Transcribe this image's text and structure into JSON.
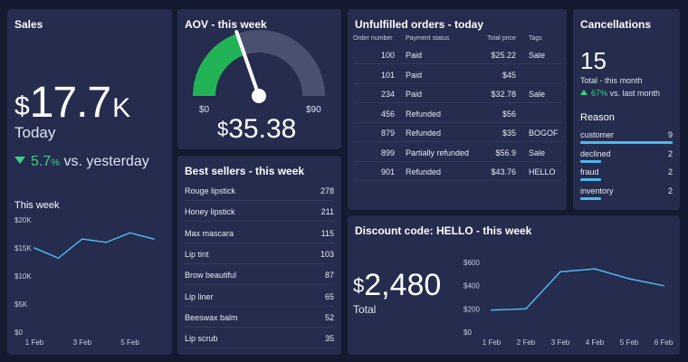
{
  "colors": {
    "background": "#141a30",
    "panel": "#252c4d",
    "accent_line": "#4fb6ee",
    "gauge_fill": "#22b356",
    "gauge_track": "#4a5170",
    "positive": "#3ccf86"
  },
  "sales": {
    "title": "Sales",
    "currency": "$",
    "value": "17.7",
    "suffix": "K",
    "period": "Today",
    "change": "5.7",
    "change_unit": "%",
    "change_text": "vs. yesterday",
    "change_direction": "down-arrow-icon",
    "week_title": "This week",
    "chart_data": {
      "type": "line",
      "categories": [
        "1 Feb",
        "2 Feb",
        "3 Feb",
        "4 Feb",
        "5 Feb",
        "6 Feb"
      ],
      "x_tick_labels": [
        "1 Feb",
        "3 Feb",
        "5 Feb"
      ],
      "values": [
        15,
        13.2,
        16.6,
        16,
        17.7,
        16.6
      ],
      "y_tick_labels": [
        "$20K",
        "$15K",
        "$10K",
        "$5K",
        "$0"
      ],
      "ylim": [
        0,
        20
      ]
    }
  },
  "aov": {
    "title": "AOV - this week",
    "currency": "$",
    "value": "35.38",
    "min_label": "$0",
    "max_label": "$90",
    "min": 0,
    "max": 90,
    "gauge_value": 35.38
  },
  "best_sellers": {
    "title": "Best sellers - this week",
    "items": [
      {
        "name": "Rouge lipstick",
        "value": "278"
      },
      {
        "name": "Honey lipstick",
        "value": "211"
      },
      {
        "name": "Max mascara",
        "value": "115"
      },
      {
        "name": "Lip tint",
        "value": "103"
      },
      {
        "name": "Brow beautiful",
        "value": "87"
      },
      {
        "name": "Lip liner",
        "value": "65"
      },
      {
        "name": "Beeswax balm",
        "value": "52"
      },
      {
        "name": "Lip scrub",
        "value": "35"
      }
    ]
  },
  "orders": {
    "title": "Unfulfilled orders - today",
    "headers": {
      "number": "Order number",
      "status": "Payment status",
      "total": "Total price",
      "tags": "Tags"
    },
    "rows": [
      {
        "number": "100",
        "status": "Paid",
        "total": "$25.22",
        "tags": "Sale"
      },
      {
        "number": "101",
        "status": "Paid",
        "total": "$45",
        "tags": ""
      },
      {
        "number": "234",
        "status": "Paid",
        "total": "$32.78",
        "tags": "Sale"
      },
      {
        "number": "456",
        "status": "Refunded",
        "total": "$56",
        "tags": ""
      },
      {
        "number": "879",
        "status": "Refunded",
        "total": "$35",
        "tags": "BOGOF"
      },
      {
        "number": "899",
        "status": "Partially refunded",
        "total": "$56.9",
        "tags": "Sale"
      },
      {
        "number": "901",
        "status": "Refunded",
        "total": "$43.76",
        "tags": "HELLO"
      }
    ]
  },
  "cancellations": {
    "title": "Cancellations",
    "value": "15",
    "total_label": "Total - this month",
    "change": "67",
    "change_unit": "%",
    "change_text": "vs. last month",
    "change_direction": "up-arrow-icon",
    "reason_title": "Reason",
    "reasons": [
      {
        "name": "customer",
        "value": "9",
        "count": 9
      },
      {
        "name": "declined",
        "value": "2",
        "count": 2
      },
      {
        "name": "fraud",
        "value": "2",
        "count": 2
      },
      {
        "name": "inventory",
        "value": "2",
        "count": 2
      }
    ],
    "reason_max": 9
  },
  "discount": {
    "title": "Discount code: HELLO - this week",
    "currency": "$",
    "value": "2,480",
    "total_label": "Total",
    "chart_data": {
      "type": "line",
      "categories": [
        "1 Feb",
        "2 Feb",
        "3 Feb",
        "4 Feb",
        "5 Feb",
        "6 Feb"
      ],
      "values": [
        190,
        200,
        520,
        545,
        460,
        400
      ],
      "y_tick_labels": [
        "$600",
        "$400",
        "$200",
        "$0"
      ],
      "ylim": [
        0,
        600
      ]
    }
  }
}
